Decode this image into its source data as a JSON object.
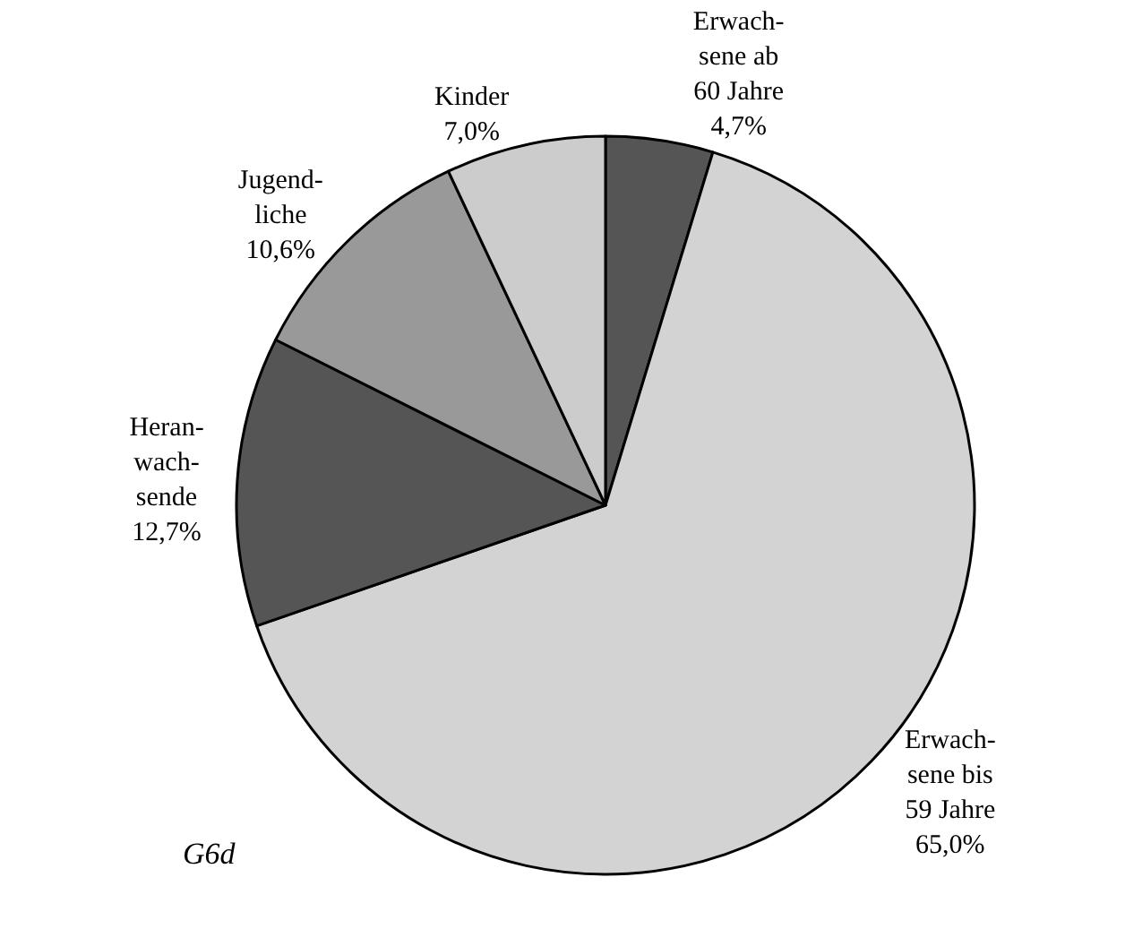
{
  "chart_data": {
    "type": "pie",
    "categories": [
      "Erwach-\nsene ab\n60 Jahre",
      "Erwach-\nsene bis\n59 Jahre",
      "Heran-\nwach-\nsende",
      "Jugend-\nliche",
      "Kinder"
    ],
    "values": [
      4.7,
      65.0,
      12.7,
      10.6,
      7.0
    ],
    "value_labels": [
      "4,7%",
      "65,0%",
      "12,7%",
      "10,6%",
      "7,0%"
    ],
    "colors": [
      "#555555",
      "#d3d3d3",
      "#555555",
      "#999999",
      "#cccccc"
    ],
    "annotations": [
      "G6d"
    ],
    "legend": false
  }
}
